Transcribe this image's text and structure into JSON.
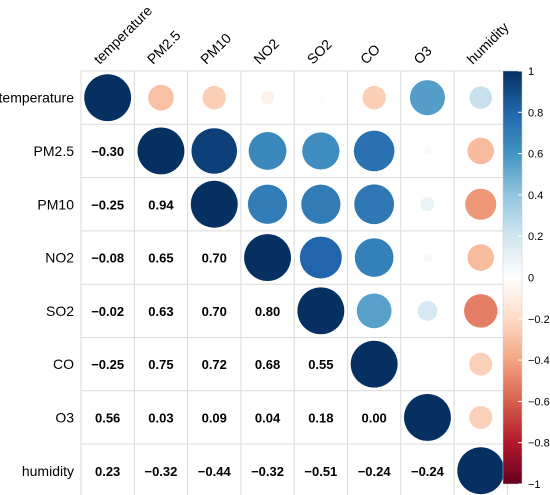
{
  "chart_data": {
    "type": "heatmap",
    "subtype": "correlation-matrix (upper: circles, lower: numbers)",
    "variables": [
      "temperature",
      "PM2.5",
      "PM10",
      "NO2",
      "SO2",
      "CO",
      "O3",
      "humidity"
    ],
    "matrix": [
      [
        1.0,
        -0.3,
        -0.25,
        -0.08,
        -0.02,
        -0.25,
        0.56,
        0.23
      ],
      [
        -0.3,
        1.0,
        0.94,
        0.65,
        0.63,
        0.75,
        0.03,
        -0.32
      ],
      [
        -0.25,
        0.94,
        1.0,
        0.7,
        0.7,
        0.72,
        0.09,
        -0.44
      ],
      [
        -0.08,
        0.65,
        0.7,
        1.0,
        0.8,
        0.68,
        0.04,
        -0.32
      ],
      [
        -0.02,
        0.63,
        0.7,
        0.8,
        1.0,
        0.55,
        0.18,
        -0.51
      ],
      [
        -0.25,
        0.75,
        0.72,
        0.68,
        0.55,
        1.0,
        0.0,
        -0.24
      ],
      [
        0.56,
        0.03,
        0.09,
        0.04,
        0.18,
        0.0,
        1.0,
        -0.24
      ],
      [
        0.23,
        -0.32,
        -0.44,
        -0.32,
        -0.51,
        -0.24,
        -0.24,
        1.0
      ]
    ],
    "lower_labels": [
      [
        "",
        "",
        "",
        "",
        "",
        "",
        "",
        ""
      ],
      [
        "−0.30",
        "",
        "",
        "",
        "",
        "",
        "",
        ""
      ],
      [
        "−0.25",
        "0.94",
        "",
        "",
        "",
        "",
        "",
        ""
      ],
      [
        "−0.08",
        "0.65",
        "0.70",
        "",
        "",
        "",
        "",
        ""
      ],
      [
        "−0.02",
        "0.63",
        "0.70",
        "0.80",
        "",
        "",
        "",
        ""
      ],
      [
        "−0.25",
        "0.75",
        "0.72",
        "0.68",
        "0.55",
        "",
        "",
        ""
      ],
      [
        "0.56",
        "0.03",
        "0.09",
        "0.04",
        "0.18",
        "0.00",
        "",
        ""
      ],
      [
        "0.23",
        "−0.32",
        "−0.44",
        "−0.32",
        "−0.51",
        "−0.24",
        "−0.24",
        ""
      ]
    ],
    "colorbar": {
      "range": [
        -1,
        1
      ],
      "ticks": [
        1,
        0.8,
        0.6,
        0.4,
        0.2,
        0,
        -0.2,
        -0.4,
        -0.6,
        -0.8,
        -1
      ],
      "tick_labels": [
        "1",
        "0.8",
        "0.6",
        "0.4",
        "0.2",
        "0",
        "−0.2",
        "−0.4",
        "−0.6",
        "−0.8",
        "−1"
      ],
      "colors": [
        "#67001F",
        "#B2182B",
        "#D6604D",
        "#F4A582",
        "#FDDBC7",
        "#FFFFFF",
        "#D1E5F0",
        "#92C5DE",
        "#4393C3",
        "#2166AC",
        "#053061"
      ],
      "placement": "right"
    },
    "grid": true,
    "legend": "colorbar-right"
  }
}
